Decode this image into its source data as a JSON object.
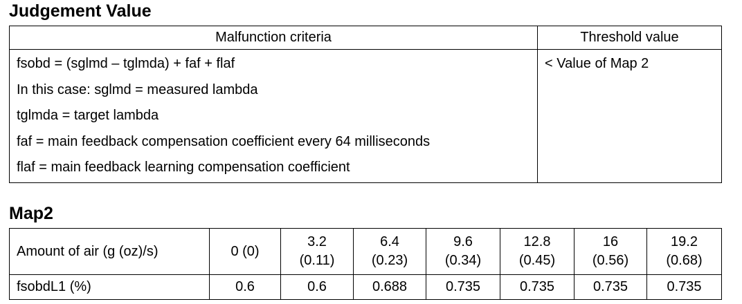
{
  "judgement": {
    "title": "Judgement Value",
    "header": [
      "Malfunction criteria",
      "Threshold value"
    ],
    "criteria": [
      "fsobd = (sglmd – tglmda) + faf + flaf",
      "In this case: sglmd = measured lambda",
      "tglmda = target lambda",
      "faf = main feedback compensation coefficient every 64 milliseconds",
      "flaf = main feedback learning compensation coefficient"
    ],
    "threshold": "< Value of Map 2"
  },
  "map2": {
    "title": "Map2",
    "row_labels": [
      "Amount of air (g (oz)/s)",
      "fsobdL1 (%)"
    ],
    "air": [
      [
        "0 (0)"
      ],
      [
        "3.2",
        "(0.11)"
      ],
      [
        "6.4",
        "(0.23)"
      ],
      [
        "9.6",
        "(0.34)"
      ],
      [
        "12.8",
        "(0.45)"
      ],
      [
        "16",
        "(0.56)"
      ],
      [
        "19.2",
        "(0.68)"
      ]
    ],
    "fsobd": [
      "0.6",
      "0.6",
      "0.688",
      "0.735",
      "0.735",
      "0.735",
      "0.735"
    ]
  }
}
